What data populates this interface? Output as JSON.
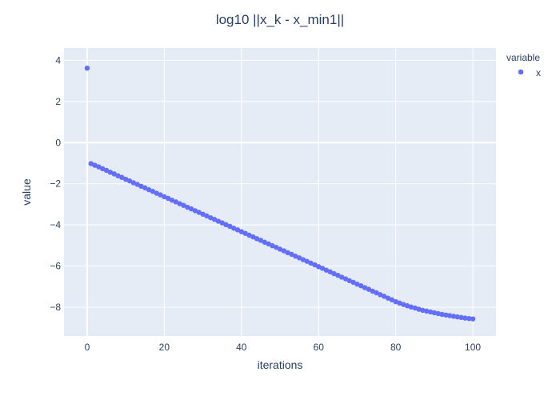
{
  "chart_data": {
    "type": "scatter",
    "title": "log10 ||x_k - x_min1||",
    "xlabel": "iterations",
    "ylabel": "value",
    "xlim": [
      -6,
      106
    ],
    "ylim": [
      -9.4,
      4.6
    ],
    "xticks": [
      0,
      20,
      40,
      60,
      80,
      100
    ],
    "yticks": [
      4,
      2,
      0,
      -2,
      -4,
      -6,
      -8
    ],
    "xtick_labels": [
      "0",
      "20",
      "40",
      "60",
      "80",
      "100"
    ],
    "ytick_labels": [
      "4",
      "2",
      "0",
      "−2",
      "−4",
      "−6",
      "−8"
    ],
    "grid": true,
    "legend_title": "variable",
    "legend_position": "right",
    "series": [
      {
        "name": "x",
        "color": "#636efa",
        "x": [
          0,
          1,
          2,
          3,
          4,
          5,
          6,
          7,
          8,
          9,
          10,
          11,
          12,
          13,
          14,
          15,
          16,
          17,
          18,
          19,
          20,
          21,
          22,
          23,
          24,
          25,
          26,
          27,
          28,
          29,
          30,
          31,
          32,
          33,
          34,
          35,
          36,
          37,
          38,
          39,
          40,
          41,
          42,
          43,
          44,
          45,
          46,
          47,
          48,
          49,
          50,
          51,
          52,
          53,
          54,
          55,
          56,
          57,
          58,
          59,
          60,
          61,
          62,
          63,
          64,
          65,
          66,
          67,
          68,
          69,
          70,
          71,
          72,
          73,
          74,
          75,
          76,
          77,
          78,
          79,
          80,
          81,
          82,
          83,
          84,
          85,
          86,
          87,
          88,
          89,
          90,
          91,
          92,
          93,
          94,
          95,
          96,
          97,
          98,
          99,
          100
        ],
        "y": [
          3.62,
          -1.02,
          -1.1,
          -1.18,
          -1.27,
          -1.35,
          -1.44,
          -1.52,
          -1.61,
          -1.69,
          -1.78,
          -1.86,
          -1.95,
          -2.03,
          -2.12,
          -2.2,
          -2.29,
          -2.37,
          -2.46,
          -2.54,
          -2.63,
          -2.71,
          -2.8,
          -2.88,
          -2.97,
          -3.05,
          -3.14,
          -3.22,
          -3.31,
          -3.39,
          -3.48,
          -3.56,
          -3.65,
          -3.73,
          -3.82,
          -3.9,
          -3.99,
          -4.07,
          -4.16,
          -4.24,
          -4.33,
          -4.41,
          -4.5,
          -4.58,
          -4.67,
          -4.75,
          -4.84,
          -4.92,
          -5.01,
          -5.09,
          -5.18,
          -5.26,
          -5.35,
          -5.43,
          -5.52,
          -5.6,
          -5.69,
          -5.77,
          -5.86,
          -5.94,
          -6.03,
          -6.11,
          -6.2,
          -6.28,
          -6.37,
          -6.45,
          -6.54,
          -6.62,
          -6.71,
          -6.79,
          -6.88,
          -6.96,
          -7.05,
          -7.13,
          -7.22,
          -7.3,
          -7.39,
          -7.47,
          -7.56,
          -7.64,
          -7.73,
          -7.8,
          -7.87,
          -7.93,
          -7.99,
          -8.04,
          -8.1,
          -8.15,
          -8.19,
          -8.23,
          -8.27,
          -8.31,
          -8.35,
          -8.38,
          -8.41,
          -8.44,
          -8.47,
          -8.5,
          -8.53,
          -8.55,
          -8.57
        ]
      }
    ]
  }
}
